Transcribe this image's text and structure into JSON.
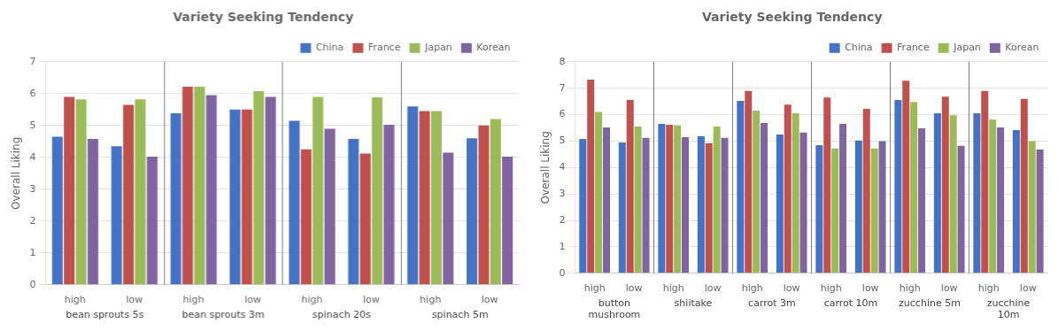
{
  "chart_data": [
    {
      "type": "bar",
      "title": "Variety Seeking Tendency",
      "ylabel": "Overall Liking",
      "categories": [
        "high",
        "low",
        "high",
        "low",
        "high",
        "low",
        "high",
        "low"
      ],
      "groups": [
        "bean sprouts 5s",
        "bean sprouts 3m",
        "spinach 20s",
        "spinach 5m"
      ],
      "series": [
        {
          "name": "China",
          "color": "#4472C4",
          "values": [
            4.65,
            4.35,
            5.38,
            5.5,
            5.15,
            4.58,
            5.6,
            4.6
          ]
        },
        {
          "name": "France",
          "color": "#C0504D",
          "values": [
            5.9,
            5.65,
            6.22,
            5.5,
            4.25,
            4.12,
            5.45,
            5.0
          ]
        },
        {
          "name": "Japan",
          "color": "#9BBB59",
          "values": [
            5.82,
            5.82,
            6.22,
            6.08,
            5.9,
            5.88,
            5.45,
            5.2
          ]
        },
        {
          "name": "Korean",
          "color": "#8064A2",
          "values": [
            4.58,
            4.02,
            5.95,
            5.9,
            4.9,
            5.02,
            4.15,
            4.02
          ]
        }
      ],
      "ylim": [
        0,
        7
      ],
      "yticks": [
        0,
        1,
        2,
        3,
        4,
        5,
        6,
        7
      ],
      "grid": true,
      "legend": "upper right"
    },
    {
      "type": "bar",
      "title": "Variety Seeking Tendency",
      "ylabel": "Overall Liking",
      "categories": [
        "high",
        "low",
        "high",
        "low",
        "high",
        "low",
        "high",
        "low",
        "high",
        "low",
        "high",
        "low"
      ],
      "groups": [
        "button\nmushroom",
        "shiitake",
        "carrot 3m",
        "carrot 10m",
        "zucchine 5m",
        "zucchine\n10m"
      ],
      "series": [
        {
          "name": "China",
          "color": "#4472C4",
          "values": [
            5.08,
            4.95,
            5.65,
            5.18,
            6.52,
            5.25,
            4.85,
            5.02,
            6.55,
            6.05,
            6.05,
            5.42
          ]
        },
        {
          "name": "France",
          "color": "#C0504D",
          "values": [
            7.32,
            6.55,
            5.62,
            4.92,
            6.9,
            6.38,
            6.65,
            6.22,
            7.28,
            6.68,
            6.9,
            6.6
          ]
        },
        {
          "name": "Japan",
          "color": "#9BBB59",
          "values": [
            6.1,
            5.55,
            5.6,
            5.55,
            6.15,
            6.05,
            4.72,
            4.72,
            6.48,
            5.98,
            5.82,
            5.0
          ]
        },
        {
          "name": "Korean",
          "color": "#8064A2",
          "values": [
            5.52,
            5.12,
            5.15,
            5.12,
            5.68,
            5.32,
            5.65,
            5.0,
            5.48,
            4.82,
            5.52,
            4.68
          ]
        }
      ],
      "ylim": [
        0,
        8
      ],
      "yticks": [
        0,
        1,
        2,
        3,
        4,
        5,
        6,
        7,
        8
      ],
      "grid": true,
      "legend": "upper right"
    }
  ]
}
